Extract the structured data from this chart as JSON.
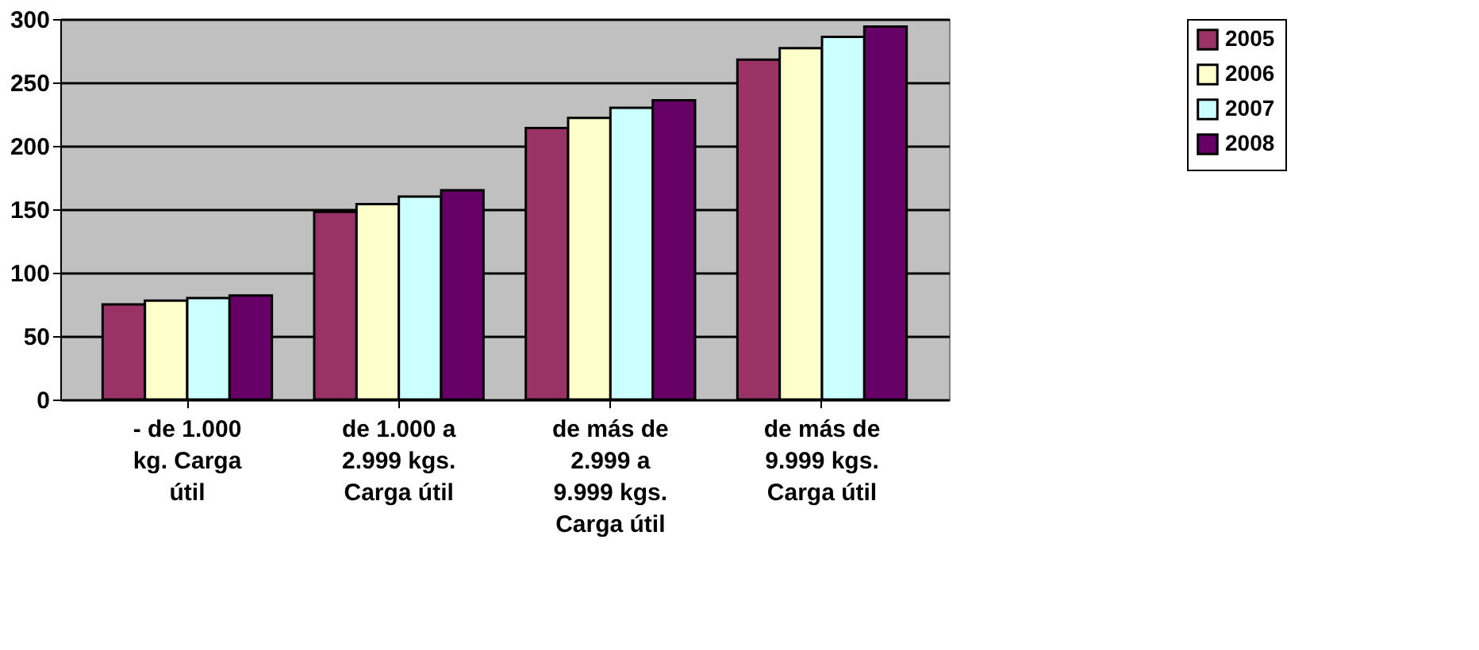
{
  "chart_data": {
    "type": "bar",
    "categories": [
      "- de 1.000 kg. Carga útil",
      "de 1.000 a 2.999 kgs. Carga útil",
      "de más de 2.999 a 9.999 kgs. Carga útil",
      "de más de 9.999 kgs. Carga útil"
    ],
    "series": [
      {
        "name": "2005",
        "color": "#993366",
        "values": [
          75,
          148,
          214,
          268
        ]
      },
      {
        "name": "2006",
        "color": "#ffffcc",
        "values": [
          78,
          154,
          222,
          277
        ]
      },
      {
        "name": "2007",
        "color": "#ccffff",
        "values": [
          80,
          160,
          230,
          286
        ]
      },
      {
        "name": "2008",
        "color": "#660066",
        "values": [
          82,
          165,
          236,
          294
        ]
      }
    ],
    "ylim": [
      0,
      300
    ],
    "yticks": [
      0,
      50,
      100,
      150,
      200,
      250,
      300
    ],
    "grid": "y",
    "legend": "right"
  }
}
